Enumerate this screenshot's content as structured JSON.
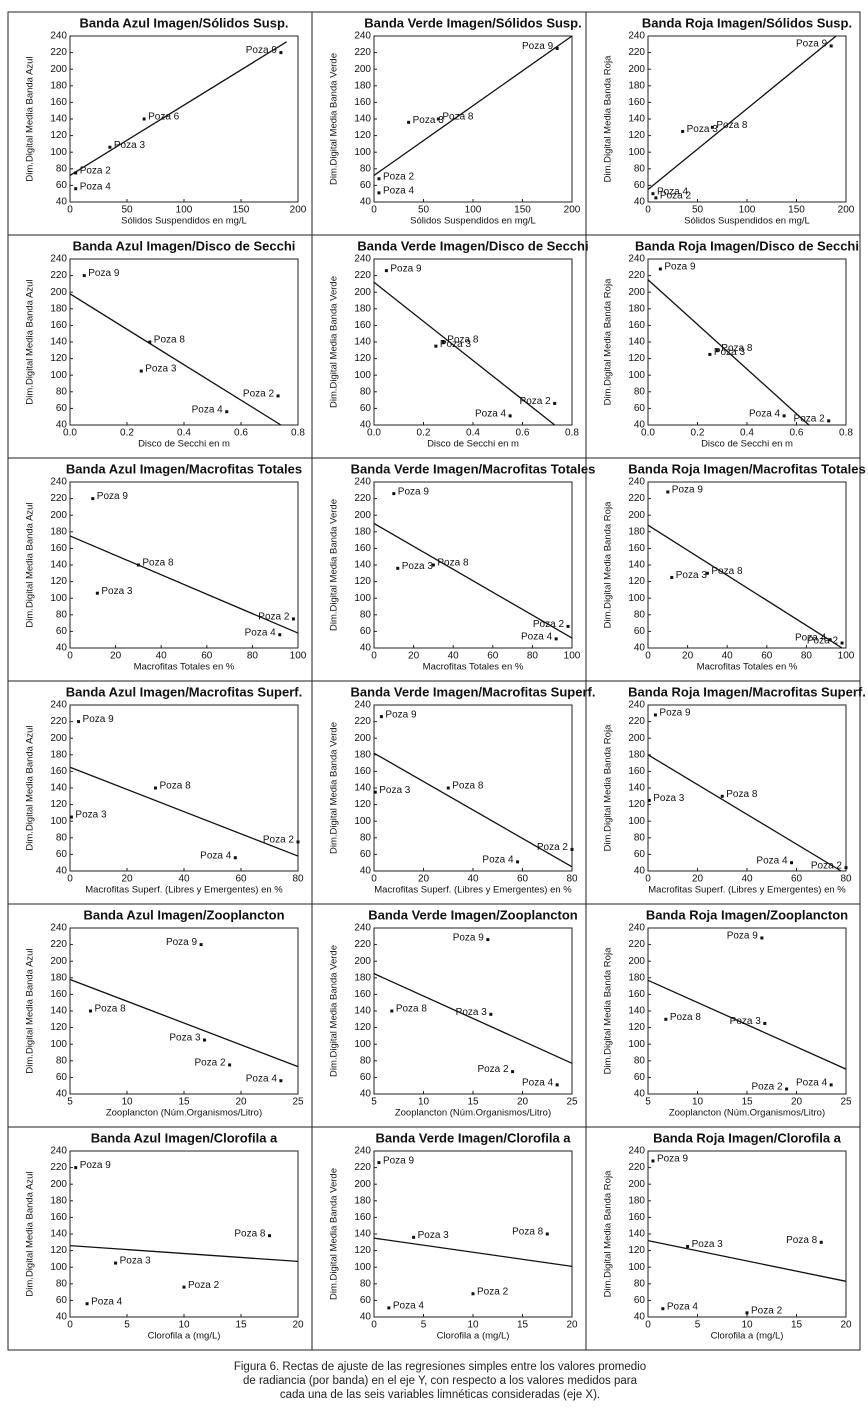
{
  "chart_data": [
    {
      "type": "scatter",
      "title": "Banda Azul Imagen/Sólidos Susp.",
      "x_label": "Sólidos Suspendidos en mg/L",
      "y_label": "Dim.Digital Media Banda Azul",
      "xlim": [
        0,
        200
      ],
      "xticks": [
        0,
        50,
        100,
        150,
        200
      ],
      "ylim": [
        40,
        240
      ],
      "yticks": [
        40,
        60,
        80,
        100,
        120,
        140,
        160,
        180,
        200,
        220,
        240
      ],
      "point_labels": [
        "Poza 9",
        "Poza 6",
        "Poza 3",
        "Poza 2",
        "Poza 4"
      ],
      "x": [
        185,
        65,
        35,
        5,
        5
      ],
      "values": [
        220,
        140,
        106,
        75,
        56
      ],
      "fit": {
        "x": [
          0,
          190
        ],
        "values": [
          72,
          233
        ]
      }
    },
    {
      "type": "scatter",
      "title": "Banda Verde Imagen/Sólidos Susp.",
      "x_label": "Sólidos Suspendidos en mg/L",
      "y_label": "Dim.Digital Media Banda Verde",
      "xlim": [
        0,
        200
      ],
      "xticks": [
        0,
        50,
        100,
        150,
        200
      ],
      "ylim": [
        40,
        240
      ],
      "yticks": [
        40,
        60,
        80,
        100,
        120,
        140,
        160,
        180,
        200,
        220,
        240
      ],
      "point_labels": [
        "Poza 9",
        "Poza 8",
        "Poza 3",
        "Poza 2",
        "Poza 4"
      ],
      "x": [
        185,
        65,
        35,
        5,
        5
      ],
      "values": [
        225,
        140,
        136,
        68,
        51
      ],
      "fit": {
        "x": [
          0,
          200
        ],
        "values": [
          72,
          240
        ]
      }
    },
    {
      "type": "scatter",
      "title": "Banda Roja Imagen/Sólidos Susp.",
      "x_label": "Sólidos Suspendidos en mg/L",
      "y_label": "Dim.Digital Media Banda Roja",
      "xlim": [
        0,
        200
      ],
      "xticks": [
        0,
        50,
        100,
        150,
        200
      ],
      "ylim": [
        40,
        240
      ],
      "yticks": [
        40,
        60,
        80,
        100,
        120,
        140,
        160,
        180,
        200,
        220,
        240
      ],
      "point_labels": [
        "Poza 9",
        "Poza 8",
        "Poza 3",
        "Poza 4",
        "Poza 2"
      ],
      "x": [
        185,
        65,
        35,
        5,
        8
      ],
      "values": [
        228,
        130,
        125,
        50,
        45
      ],
      "fit": {
        "x": [
          0,
          190
        ],
        "values": [
          55,
          240
        ]
      }
    },
    {
      "type": "scatter",
      "title": "Banda Azul Imagen/Disco de Secchi",
      "x_label": "Disco de Secchi en m",
      "y_label": "Dim.Digital Media Banda Azul",
      "xlim": [
        0,
        0.8
      ],
      "xticks": [
        {
          "value": 0,
          "label": "0.0"
        },
        0.2,
        0.4,
        0.6,
        0.8
      ],
      "ylim": [
        40,
        240
      ],
      "yticks": [
        40,
        60,
        80,
        100,
        120,
        140,
        160,
        180,
        200,
        220,
        240
      ],
      "point_labels": [
        "Poza 9",
        "Poza 8",
        "Poza 3",
        "Poza 4",
        "Poza 2"
      ],
      "x": [
        0.05,
        0.28,
        0.25,
        0.55,
        0.73
      ],
      "values": [
        220,
        140,
        105,
        56,
        75
      ],
      "fit": {
        "x": [
          0,
          0.74
        ],
        "values": [
          198,
          40
        ]
      }
    },
    {
      "type": "scatter",
      "title": "Banda Verde Imagen/Disco de Secchi",
      "x_label": "Disco de Secchi en m",
      "y_label": "Dim.Digital Media Banda Verde",
      "xlim": [
        0,
        0.8
      ],
      "xticks": [
        {
          "value": 0,
          "label": "0.0"
        },
        0.2,
        0.4,
        0.6,
        0.8
      ],
      "ylim": [
        40,
        240
      ],
      "yticks": [
        40,
        60,
        80,
        100,
        120,
        140,
        160,
        180,
        200,
        220,
        240
      ],
      "point_labels": [
        "Poza 9",
        "Poza 8",
        "Poza 3",
        "Poza 4",
        "Poza 2"
      ],
      "x": [
        0.05,
        0.28,
        0.25,
        0.55,
        0.73
      ],
      "values": [
        226,
        140,
        135,
        51,
        66
      ],
      "fit": {
        "x": [
          0,
          0.73
        ],
        "values": [
          212,
          40
        ]
      }
    },
    {
      "type": "scatter",
      "title": "Banda Roja Imagen/Disco de Secchi",
      "x_label": "Disco de Secchi en m",
      "y_label": "Dim.Digital Media Banda Roja",
      "xlim": [
        0,
        0.8
      ],
      "xticks": [
        {
          "value": 0,
          "label": "0.0"
        },
        0.2,
        0.4,
        0.6,
        0.8
      ],
      "ylim": [
        40,
        240
      ],
      "yticks": [
        40,
        60,
        80,
        100,
        120,
        140,
        160,
        180,
        200,
        220,
        240
      ],
      "point_labels": [
        "Poza 9",
        "Poza 8",
        "Poza 3",
        "Poza 4",
        "Poza 2"
      ],
      "x": [
        0.05,
        0.28,
        0.25,
        0.55,
        0.73
      ],
      "values": [
        228,
        130,
        125,
        51,
        45
      ],
      "fit": {
        "x": [
          0,
          0.65
        ],
        "values": [
          215,
          40
        ]
      }
    },
    {
      "type": "scatter",
      "title": "Banda Azul Imagen/Macrofitas Totales",
      "x_label": "Macrofitas Totales en %",
      "y_label": "Dim.Digital Media Banda Azul",
      "xlim": [
        0,
        100
      ],
      "xticks": [
        0,
        20,
        40,
        60,
        80,
        100
      ],
      "ylim": [
        40,
        240
      ],
      "yticks": [
        40,
        60,
        80,
        100,
        120,
        140,
        160,
        180,
        200,
        220,
        240
      ],
      "point_labels": [
        "Poza 9",
        "Poza 8",
        "Poza 3",
        "Poza 2",
        "Poza 4"
      ],
      "x": [
        10,
        30,
        12,
        98,
        92
      ],
      "values": [
        220,
        140,
        106,
        75,
        56
      ],
      "fit": {
        "x": [
          0,
          100
        ],
        "values": [
          175,
          58
        ]
      }
    },
    {
      "type": "scatter",
      "title": "Banda Verde Imagen/Macrofitas Totales",
      "x_label": "Macrofitas Totales en %",
      "y_label": "Dim.Digital Media Banda Verde",
      "xlim": [
        0,
        100
      ],
      "xticks": [
        0,
        20,
        40,
        60,
        80,
        100
      ],
      "ylim": [
        40,
        240
      ],
      "yticks": [
        40,
        60,
        80,
        100,
        120,
        140,
        160,
        180,
        200,
        220,
        240
      ],
      "point_labels": [
        "Poza 9",
        "Poza 8",
        "Poza 3",
        "Poza 2",
        "Poza 4"
      ],
      "x": [
        10,
        30,
        12,
        98,
        92
      ],
      "values": [
        226,
        140,
        136,
        66,
        51
      ],
      "fit": {
        "x": [
          0,
          100
        ],
        "values": [
          190,
          52
        ]
      }
    },
    {
      "type": "scatter",
      "title": "Banda Roja Imagen/Macrofitas Totales",
      "x_label": "Macrofitas Totales en %",
      "y_label": "Dim.Digital Media Banda Roja",
      "xlim": [
        0,
        100
      ],
      "xticks": [
        0,
        20,
        40,
        60,
        80,
        100
      ],
      "ylim": [
        40,
        240
      ],
      "yticks": [
        40,
        60,
        80,
        100,
        120,
        140,
        160,
        180,
        200,
        220,
        240
      ],
      "point_labels": [
        "Poza 9",
        "Poza 8",
        "Poza 3",
        "Poza 2",
        "Poza 4"
      ],
      "x": [
        10,
        30,
        12,
        98,
        92
      ],
      "values": [
        228,
        130,
        125,
        46,
        50
      ],
      "fit": {
        "x": [
          0,
          98
        ],
        "values": [
          188,
          40
        ]
      }
    },
    {
      "type": "scatter",
      "title": "Banda Azul Imagen/Macrofitas Superf.",
      "x_label": "Macrofitas Superf. (Libres y Emergentes) en %",
      "y_label": "Dim.Digital Media Banda Azul",
      "xlim": [
        0,
        80
      ],
      "xticks": [
        0,
        20,
        40,
        60,
        80
      ],
      "ylim": [
        40,
        240
      ],
      "yticks": [
        40,
        60,
        80,
        100,
        120,
        140,
        160,
        180,
        200,
        220,
        240
      ],
      "point_labels": [
        "Poza 9",
        "Poza 8",
        "Poza 3",
        "Poza 4",
        "Poza 2"
      ],
      "x": [
        3,
        30,
        0.5,
        58,
        80
      ],
      "values": [
        220,
        140,
        105,
        56,
        75
      ],
      "fit": {
        "x": [
          0,
          80
        ],
        "values": [
          165,
          58
        ]
      }
    },
    {
      "type": "scatter",
      "title": "Banda Verde Imagen/Macrofitas Superf.",
      "x_label": "Macrofitas Superf. (Libres y Emergentes) en %",
      "y_label": "Dim.Digital Media Banda Verde",
      "xlim": [
        0,
        80
      ],
      "xticks": [
        0,
        20,
        40,
        60,
        80
      ],
      "ylim": [
        40,
        240
      ],
      "yticks": [
        40,
        60,
        80,
        100,
        120,
        140,
        160,
        180,
        200,
        220,
        240
      ],
      "point_labels": [
        "Poza 9",
        "Poza 8",
        "Poza 3",
        "Poza 4",
        "Poza 2"
      ],
      "x": [
        3,
        30,
        0.5,
        58,
        80
      ],
      "values": [
        226,
        140,
        135,
        51,
        66
      ],
      "fit": {
        "x": [
          0,
          80
        ],
        "values": [
          182,
          45
        ]
      }
    },
    {
      "type": "scatter",
      "title": "Banda Roja Imagen/Macrofitas Superf.",
      "x_label": "Macrofitas Superf. (Libres y Emergentes) en %",
      "y_label": "Dim.Digital Media Banda Roja",
      "xlim": [
        0,
        80
      ],
      "xticks": [
        0,
        20,
        40,
        60,
        80
      ],
      "ylim": [
        40,
        240
      ],
      "yticks": [
        40,
        60,
        80,
        100,
        120,
        140,
        160,
        180,
        200,
        220,
        240
      ],
      "point_labels": [
        "Poza 9",
        "Poza 8",
        "Poza 3",
        "Poza 4",
        "Poza 2"
      ],
      "x": [
        3,
        30,
        0.5,
        58,
        80
      ],
      "values": [
        228,
        130,
        125,
        50,
        44
      ],
      "fit": {
        "x": [
          0,
          78
        ],
        "values": [
          180,
          40
        ]
      }
    },
    {
      "type": "scatter",
      "title": "Banda Azul Imagen/Zooplancton",
      "x_label": "Zooplancton (Núm.Organismos/Litro)",
      "y_label": "Dim.Digital Media Banda Azul",
      "xlim": [
        5,
        25
      ],
      "xticks": [
        5,
        10,
        15,
        20,
        25
      ],
      "ylim": [
        40,
        240
      ],
      "yticks": [
        40,
        60,
        80,
        100,
        120,
        140,
        160,
        180,
        200,
        220,
        240
      ],
      "point_labels": [
        "Poza 9",
        "Poza 8",
        "Poza 3",
        "Poza 2",
        "Poza 4"
      ],
      "x": [
        16.5,
        6.8,
        16.8,
        19,
        23.5
      ],
      "values": [
        220,
        140,
        105,
        75,
        56
      ],
      "fit": {
        "x": [
          5,
          25
        ],
        "values": [
          178,
          73
        ]
      }
    },
    {
      "type": "scatter",
      "title": "Banda Verde Imagen/Zooplancton",
      "x_label": "Zooplancton (Núm.Organismos/Litro)",
      "y_label": "Dim.Digital Media Banda Verde",
      "xlim": [
        5,
        25
      ],
      "xticks": [
        5,
        10,
        15,
        20,
        25
      ],
      "ylim": [
        40,
        240
      ],
      "yticks": [
        40,
        60,
        80,
        100,
        120,
        140,
        160,
        180,
        200,
        220,
        240
      ],
      "point_labels": [
        "Poza 9",
        "Poza 8",
        "Poza 3",
        "Poza 2",
        "Poza 4"
      ],
      "x": [
        16.5,
        6.8,
        16.8,
        19,
        23.5
      ],
      "values": [
        226,
        140,
        136,
        67,
        51
      ],
      "fit": {
        "x": [
          5,
          25
        ],
        "values": [
          185,
          77
        ]
      }
    },
    {
      "type": "scatter",
      "title": "Banda Roja Imagen/Zooplancton",
      "x_label": "Zooplancton (Núm.Organismos/Litro)",
      "y_label": "Dim.Digital Media Banda Roja",
      "xlim": [
        5,
        25
      ],
      "xticks": [
        5,
        10,
        15,
        20,
        25
      ],
      "ylim": [
        40,
        240
      ],
      "yticks": [
        40,
        60,
        80,
        100,
        120,
        140,
        160,
        180,
        200,
        220,
        240
      ],
      "point_labels": [
        "Poza 9",
        "Poza 8",
        "Poza 3",
        "Poza 2",
        "Poza 4"
      ],
      "x": [
        16.5,
        6.8,
        16.8,
        19,
        23.5
      ],
      "values": [
        228,
        130,
        125,
        46,
        51
      ],
      "fit": {
        "x": [
          5,
          25
        ],
        "values": [
          177,
          70
        ]
      }
    },
    {
      "type": "scatter",
      "title": "Banda Azul Imagen/Clorofila a",
      "x_label": "Clorofila a (mg/L)",
      "y_label": "Dim.Digital Media Banda Azul",
      "xlim": [
        0,
        20
      ],
      "xticks": [
        0,
        5,
        10,
        15,
        20
      ],
      "ylim": [
        40,
        240
      ],
      "yticks": [
        40,
        60,
        80,
        100,
        120,
        140,
        160,
        180,
        200,
        220,
        240
      ],
      "point_labels": [
        "Poza 9",
        "Poza 8",
        "Poza 3",
        "Poza 2",
        "Poza 4"
      ],
      "x": [
        0.5,
        17.5,
        4,
        10,
        1.5
      ],
      "values": [
        220,
        138,
        105,
        76,
        56
      ],
      "fit": {
        "x": [
          0,
          20
        ],
        "values": [
          126,
          107
        ]
      }
    },
    {
      "type": "scatter",
      "title": "Banda Verde Imagen/Clorofila a",
      "x_label": "Clorofila a (mg/L)",
      "y_label": "Dim.Digital Media Banda Verde",
      "xlim": [
        0,
        20
      ],
      "xticks": [
        0,
        5,
        10,
        15,
        20
      ],
      "ylim": [
        40,
        240
      ],
      "yticks": [
        40,
        60,
        80,
        100,
        120,
        140,
        160,
        180,
        200,
        220,
        240
      ],
      "point_labels": [
        "Poza 9",
        "Poza 8",
        "Poza 3",
        "Poza 2",
        "Poza 4"
      ],
      "x": [
        0.5,
        17.5,
        4,
        10,
        1.5
      ],
      "values": [
        226,
        140,
        136,
        68,
        51
      ],
      "fit": {
        "x": [
          0,
          20
        ],
        "values": [
          135,
          101
        ]
      }
    },
    {
      "type": "scatter",
      "title": "Banda Roja Imagen/Clorofila a",
      "x_label": "Clorofila a (mg/L)",
      "y_label": "Dim.Digital Media Banda Roja",
      "xlim": [
        0,
        20
      ],
      "xticks": [
        0,
        5,
        10,
        15,
        20
      ],
      "ylim": [
        40,
        240
      ],
      "yticks": [
        40,
        60,
        80,
        100,
        120,
        140,
        160,
        180,
        200,
        220,
        240
      ],
      "point_labels": [
        "Poza 9",
        "Poza 8",
        "Poza 3",
        "Poza 2",
        "Poza 4"
      ],
      "x": [
        0.5,
        17.5,
        4,
        10,
        1.5
      ],
      "values": [
        228,
        130,
        125,
        45,
        50
      ],
      "fit": {
        "x": [
          0,
          20
        ],
        "values": [
          132,
          83
        ]
      }
    }
  ],
  "caption": "Figura 6. Rectas de ajuste de las regresiones simples entre los valores promedio de radiancia (por banda) en el eje Y, con respecto a los valores medidos para cada una de las seis variables limnéticas consideradas (eje X)."
}
